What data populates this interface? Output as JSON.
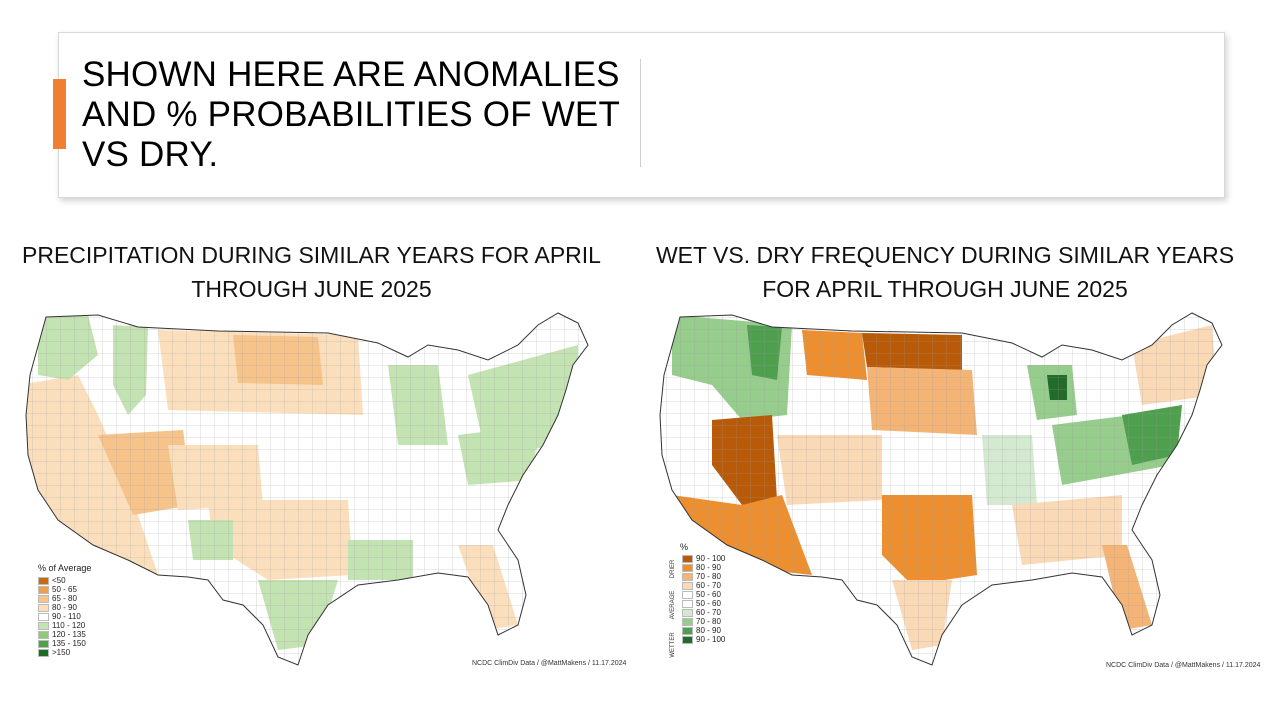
{
  "slide": {
    "title": "SHOWN HERE ARE ANOMALIES AND % PROBABILITIES OF WET VS DRY.",
    "accent_color": "#ee7f33"
  },
  "left_map": {
    "title": "PRECIPITATION DURING SIMILAR YEARS FOR APRIL THROUGH JUNE 2025",
    "legend_title": "% of Average",
    "legend": [
      {
        "label": "<50",
        "color": "#c86a12"
      },
      {
        "label": "50 - 65",
        "color": "#f0a04b"
      },
      {
        "label": "65 - 80",
        "color": "#f6c38a"
      },
      {
        "label": "80 - 90",
        "color": "#fbdfbd"
      },
      {
        "label": "90 - 110",
        "color": "#ffffff"
      },
      {
        "label": "110 - 120",
        "color": "#c4e3b2"
      },
      {
        "label": "120 - 135",
        "color": "#8ecb78"
      },
      {
        "label": "135 - 150",
        "color": "#4fa048"
      },
      {
        "label": ">150",
        "color": "#1e6b24"
      }
    ],
    "credit": "NCDC ClimDiv Data / @MattMakens / 11.17.2024"
  },
  "right_map": {
    "title": "WET VS. DRY FREQUENCY DURING SIMILAR YEARS FOR APRIL THROUGH JUNE 2025",
    "legend_unit": "%",
    "group_labels": [
      "DRIER",
      "AVERAGE",
      "WETTER"
    ],
    "legend": [
      {
        "label": "90 - 100",
        "color": "#b85a08"
      },
      {
        "label": "80 - 90",
        "color": "#ee8f2f"
      },
      {
        "label": "70 - 80",
        "color": "#f4b476"
      },
      {
        "label": "60 - 70",
        "color": "#fad9b6"
      },
      {
        "label": "50 - 60",
        "color": "#ffffff"
      },
      {
        "label": "50 - 60",
        "color": "#ffffff"
      },
      {
        "label": "60 - 70",
        "color": "#d4ead0"
      },
      {
        "label": "70 - 80",
        "color": "#96cd8c"
      },
      {
        "label": "80 - 90",
        "color": "#4e9f4e"
      },
      {
        "label": "90 - 100",
        "color": "#236b2a"
      }
    ],
    "credit": "NCDC ClimDiv Data / @MattMakens / 11.17.2024"
  }
}
